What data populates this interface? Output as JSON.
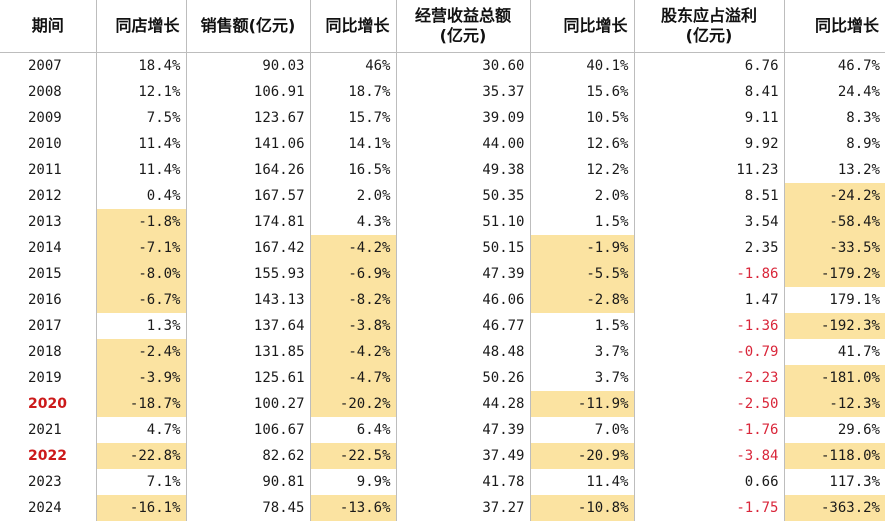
{
  "columns": [
    "期间",
    "同店增长",
    "销售额(亿元)",
    "同比增长",
    "经营收益总额\n(亿元)",
    "同比增长",
    "股东应占溢利\n(亿元)",
    "同比增长"
  ],
  "rows": [
    {
      "period": "2007",
      "same_store": "18.4%",
      "sales": "90.03",
      "sales_yoy": "46%",
      "op_income": "30.60",
      "op_yoy": "40.1%",
      "profit": "6.76",
      "profit_yoy": "46.7%"
    },
    {
      "period": "2008",
      "same_store": "12.1%",
      "sales": "106.91",
      "sales_yoy": "18.7%",
      "op_income": "35.37",
      "op_yoy": "15.6%",
      "profit": "8.41",
      "profit_yoy": "24.4%"
    },
    {
      "period": "2009",
      "same_store": "7.5%",
      "sales": "123.67",
      "sales_yoy": "15.7%",
      "op_income": "39.09",
      "op_yoy": "10.5%",
      "profit": "9.11",
      "profit_yoy": "8.3%"
    },
    {
      "period": "2010",
      "same_store": "11.4%",
      "sales": "141.06",
      "sales_yoy": "14.1%",
      "op_income": "44.00",
      "op_yoy": "12.6%",
      "profit": "9.92",
      "profit_yoy": "8.9%"
    },
    {
      "period": "2011",
      "same_store": "11.4%",
      "sales": "164.26",
      "sales_yoy": "16.5%",
      "op_income": "49.38",
      "op_yoy": "12.2%",
      "profit": "11.23",
      "profit_yoy": "13.2%"
    },
    {
      "period": "2012",
      "same_store": "0.4%",
      "sales": "167.57",
      "sales_yoy": "2.0%",
      "op_income": "50.35",
      "op_yoy": "2.0%",
      "profit": "8.51",
      "profit_yoy": "-24.2%"
    },
    {
      "period": "2013",
      "same_store": "-1.8%",
      "sales": "174.81",
      "sales_yoy": "4.3%",
      "op_income": "51.10",
      "op_yoy": "1.5%",
      "profit": "3.54",
      "profit_yoy": "-58.4%"
    },
    {
      "period": "2014",
      "same_store": "-7.1%",
      "sales": "167.42",
      "sales_yoy": "-4.2%",
      "op_income": "50.15",
      "op_yoy": "-1.9%",
      "profit": "2.35",
      "profit_yoy": "-33.5%"
    },
    {
      "period": "2015",
      "same_store": "-8.0%",
      "sales": "155.93",
      "sales_yoy": "-6.9%",
      "op_income": "47.39",
      "op_yoy": "-5.5%",
      "profit": "-1.86",
      "profit_yoy": "-179.2%"
    },
    {
      "period": "2016",
      "same_store": "-6.7%",
      "sales": "143.13",
      "sales_yoy": "-8.2%",
      "op_income": "46.06",
      "op_yoy": "-2.8%",
      "profit": "1.47",
      "profit_yoy": "179.1%"
    },
    {
      "period": "2017",
      "same_store": "1.3%",
      "sales": "137.64",
      "sales_yoy": "-3.8%",
      "op_income": "46.77",
      "op_yoy": "1.5%",
      "profit": "-1.36",
      "profit_yoy": "-192.3%"
    },
    {
      "period": "2018",
      "same_store": "-2.4%",
      "sales": "131.85",
      "sales_yoy": "-4.2%",
      "op_income": "48.48",
      "op_yoy": "3.7%",
      "profit": "-0.79",
      "profit_yoy": "41.7%"
    },
    {
      "period": "2019",
      "same_store": "-3.9%",
      "sales": "125.61",
      "sales_yoy": "-4.7%",
      "op_income": "50.26",
      "op_yoy": "3.7%",
      "profit": "-2.23",
      "profit_yoy": "-181.0%"
    },
    {
      "period": "2020",
      "same_store": "-18.7%",
      "sales": "100.27",
      "sales_yoy": "-20.2%",
      "op_income": "44.28",
      "op_yoy": "-11.9%",
      "profit": "-2.50",
      "profit_yoy": "-12.3%"
    },
    {
      "period": "2021",
      "same_store": "4.7%",
      "sales": "106.67",
      "sales_yoy": "6.4%",
      "op_income": "47.39",
      "op_yoy": "7.0%",
      "profit": "-1.76",
      "profit_yoy": "29.6%"
    },
    {
      "period": "2022",
      "same_store": "-22.8%",
      "sales": "82.62",
      "sales_yoy": "-22.5%",
      "op_income": "37.49",
      "op_yoy": "-20.9%",
      "profit": "-3.84",
      "profit_yoy": "-118.0%"
    },
    {
      "period": "2023",
      "same_store": "7.1%",
      "sales": "90.81",
      "sales_yoy": "9.9%",
      "op_income": "41.78",
      "op_yoy": "11.4%",
      "profit": "0.66",
      "profit_yoy": "117.3%"
    },
    {
      "period": "2024",
      "same_store": "-16.1%",
      "sales": "78.45",
      "sales_yoy": "-13.6%",
      "op_income": "37.27",
      "op_yoy": "-10.8%",
      "profit": "-1.75",
      "profit_yoy": "-363.2%"
    }
  ],
  "highlighted_periods": [
    "2020",
    "2022"
  ],
  "colors": {
    "highlight_fill": "#fbe3a1",
    "negative_profit_text": "#d9263a",
    "highlighted_period_text": "#cc1a1a"
  }
}
